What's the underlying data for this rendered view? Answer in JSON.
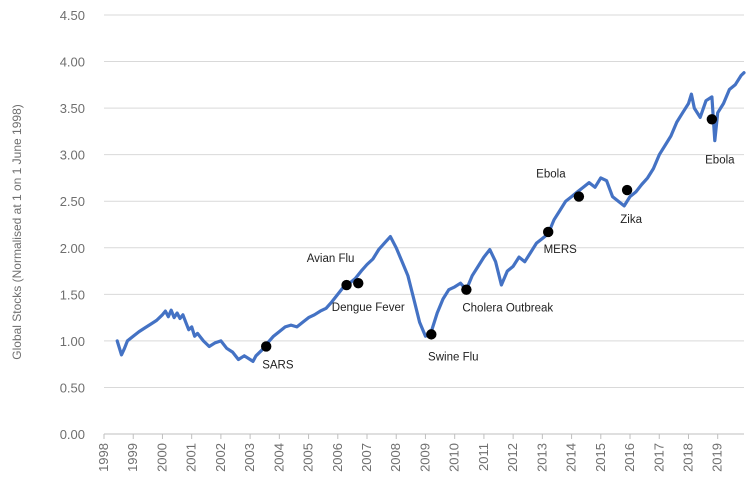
{
  "chart_data": {
    "type": "line",
    "title": "",
    "xlabel": "",
    "ylabel": "Global Stocks (Normalised at 1 on 1 June 1998)",
    "xlim": [
      1998.0,
      2019.9
    ],
    "ylim": [
      0.0,
      4.5
    ],
    "grid": "horizontal",
    "line_color": "#4472c4",
    "marker_color": "#000000",
    "y_ticks": [
      "0.00",
      "0.50",
      "1.00",
      "1.50",
      "2.00",
      "2.50",
      "3.00",
      "3.50",
      "4.00",
      "4.50"
    ],
    "x_ticks": [
      "1998",
      "1999",
      "2000",
      "2001",
      "2002",
      "2003",
      "2004",
      "2005",
      "2006",
      "2007",
      "2008",
      "2009",
      "2010",
      "2011",
      "2012",
      "2013",
      "2014",
      "2015",
      "2016",
      "2017",
      "2018",
      "2019"
    ],
    "series": [
      {
        "x": [
          1998.45,
          1998.6,
          1998.7,
          1998.8,
          1999.0,
          1999.2,
          1999.4,
          1999.6,
          1999.8,
          2000.0,
          2000.1,
          2000.2,
          2000.3,
          2000.4,
          2000.5,
          2000.6,
          2000.7,
          2000.8,
          2000.9,
          2001.0,
          2001.1,
          2001.2,
          2001.4,
          2001.6,
          2001.8,
          2002.0,
          2002.2,
          2002.4,
          2002.6,
          2002.8,
          2003.0,
          2003.1,
          2003.2,
          2003.4,
          2003.6,
          2003.8,
          2004.0,
          2004.2,
          2004.4,
          2004.6,
          2004.8,
          2005.0,
          2005.2,
          2005.4,
          2005.6,
          2005.8,
          2006.0,
          2006.2,
          2006.4,
          2006.6,
          2006.8,
          2007.0,
          2007.2,
          2007.4,
          2007.6,
          2007.8,
          2008.0,
          2008.2,
          2008.4,
          2008.6,
          2008.8,
          2009.0,
          2009.2,
          2009.4,
          2009.6,
          2009.8,
          2010.0,
          2010.2,
          2010.4,
          2010.6,
          2010.8,
          2011.0,
          2011.2,
          2011.4,
          2011.6,
          2011.8,
          2012.0,
          2012.2,
          2012.4,
          2012.6,
          2012.8,
          2013.0,
          2013.2,
          2013.4,
          2013.6,
          2013.8,
          2014.0,
          2014.2,
          2014.4,
          2014.6,
          2014.8,
          2015.0,
          2015.2,
          2015.4,
          2015.6,
          2015.8,
          2016.0,
          2016.2,
          2016.4,
          2016.6,
          2016.8,
          2017.0,
          2017.2,
          2017.4,
          2017.6,
          2017.8,
          2018.0,
          2018.1,
          2018.2,
          2018.4,
          2018.6,
          2018.8,
          2018.9,
          2019.0,
          2019.2,
          2019.4,
          2019.6,
          2019.8,
          2019.9
        ],
        "y": [
          1.0,
          0.85,
          0.92,
          1.0,
          1.05,
          1.1,
          1.14,
          1.18,
          1.22,
          1.28,
          1.32,
          1.26,
          1.33,
          1.25,
          1.3,
          1.24,
          1.28,
          1.2,
          1.12,
          1.15,
          1.05,
          1.08,
          1.0,
          0.94,
          0.98,
          1.0,
          0.92,
          0.88,
          0.8,
          0.84,
          0.8,
          0.78,
          0.84,
          0.9,
          0.98,
          1.05,
          1.1,
          1.15,
          1.17,
          1.15,
          1.2,
          1.25,
          1.28,
          1.32,
          1.35,
          1.42,
          1.5,
          1.58,
          1.62,
          1.67,
          1.75,
          1.82,
          1.88,
          1.98,
          2.05,
          2.12,
          2.0,
          1.85,
          1.7,
          1.45,
          1.2,
          1.05,
          1.1,
          1.3,
          1.45,
          1.55,
          1.58,
          1.62,
          1.55,
          1.7,
          1.8,
          1.9,
          1.98,
          1.85,
          1.6,
          1.75,
          1.8,
          1.9,
          1.85,
          1.95,
          2.05,
          2.1,
          2.15,
          2.3,
          2.4,
          2.5,
          2.55,
          2.6,
          2.65,
          2.7,
          2.65,
          2.75,
          2.72,
          2.55,
          2.5,
          2.45,
          2.55,
          2.6,
          2.68,
          2.75,
          2.85,
          3.0,
          3.1,
          3.2,
          3.35,
          3.45,
          3.55,
          3.65,
          3.5,
          3.4,
          3.58,
          3.62,
          3.15,
          3.45,
          3.55,
          3.7,
          3.75,
          3.85,
          3.88
        ]
      }
    ],
    "annotations": [
      {
        "label": "SARS",
        "x": 2003.55,
        "y": 0.94,
        "dx": -4,
        "dy": 22,
        "anchor": "start"
      },
      {
        "label": "Avian Flu",
        "x": 2006.3,
        "y": 1.6,
        "dx": -16,
        "dy": -23,
        "anchor": "middle"
      },
      {
        "label": "Dengue Fever",
        "x": 2006.7,
        "y": 1.62,
        "dx": 10,
        "dy": 28,
        "anchor": "middle"
      },
      {
        "label": "Swine Flu",
        "x": 2009.2,
        "y": 1.07,
        "dx": 22,
        "dy": 26,
        "anchor": "middle"
      },
      {
        "label": "Cholera Outbreak",
        "x": 2010.4,
        "y": 1.55,
        "dx": -4,
        "dy": 22,
        "anchor": "start"
      },
      {
        "label": "MERS",
        "x": 2013.2,
        "y": 2.17,
        "dx": 12,
        "dy": 21,
        "anchor": "middle"
      },
      {
        "label": "Ebola",
        "x": 2014.25,
        "y": 2.55,
        "dx": -28,
        "dy": -19,
        "anchor": "middle"
      },
      {
        "label": "Zika",
        "x": 2015.9,
        "y": 2.62,
        "dx": 4,
        "dy": 33,
        "anchor": "middle"
      },
      {
        "label": "Ebola",
        "x": 2018.8,
        "y": 3.38,
        "dx": 8,
        "dy": 44,
        "anchor": "middle"
      }
    ]
  }
}
